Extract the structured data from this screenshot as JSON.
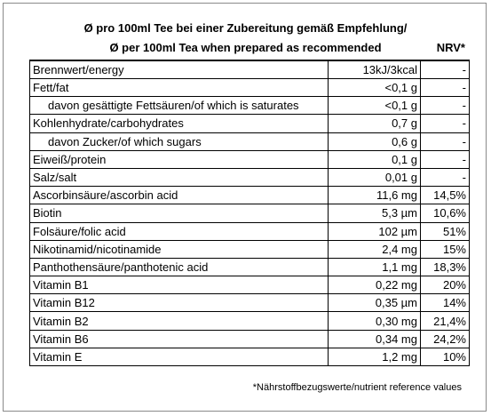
{
  "header": {
    "line1": "Ø pro 100ml Tee bei einer Zubereitung gemäß Empfehlung/",
    "line2": "Ø per 100ml Tea when prepared as recommended",
    "nrv_label": "NRV*"
  },
  "rows": [
    {
      "name": "Brennwert/energy",
      "amount": "13kJ/3kcal",
      "nrv": "-",
      "indent": false
    },
    {
      "name": "Fett/fat",
      "amount": "<0,1 g",
      "nrv": "-",
      "indent": false
    },
    {
      "name": "davon gesättigte Fettsäuren/of which is saturates",
      "amount": "<0,1 g",
      "nrv": "-",
      "indent": true
    },
    {
      "name": "Kohlenhydrate/carbohydrates",
      "amount": "0,7 g",
      "nrv": "-",
      "indent": false
    },
    {
      "name": "davon Zucker/of which sugars",
      "amount": "0,6 g",
      "nrv": "-",
      "indent": true
    },
    {
      "name": "Eiweiß/protein",
      "amount": "0,1 g",
      "nrv": "-",
      "indent": false
    },
    {
      "name": "Salz/salt",
      "amount": "0,01 g",
      "nrv": "-",
      "indent": false
    },
    {
      "name": "Ascorbinsäure/ascorbin acid",
      "amount": "11,6 mg",
      "nrv": "14,5%",
      "indent": false
    },
    {
      "name": "Biotin",
      "amount": "5,3 µm",
      "nrv": "10,6%",
      "indent": false
    },
    {
      "name": "Folsäure/folic acid",
      "amount": "102 µm",
      "nrv": "51%",
      "indent": false
    },
    {
      "name": "Nikotinamid/nicotinamide",
      "amount": "2,4 mg",
      "nrv": "15%",
      "indent": false
    },
    {
      "name": "Panthothensäure/panthotenic acid",
      "amount": "1,1 mg",
      "nrv": "18,3%",
      "indent": false
    },
    {
      "name": "Vitamin B1",
      "amount": "0,22 mg",
      "nrv": "20%",
      "indent": false
    },
    {
      "name": "Vitamin B12",
      "amount": "0,35 µm",
      "nrv": "14%",
      "indent": false
    },
    {
      "name": "Vitamin B2",
      "amount": "0,30 mg",
      "nrv": "21,4%",
      "indent": false
    },
    {
      "name": "Vitamin B6",
      "amount": "0,34 mg",
      "nrv": "24,2%",
      "indent": false
    },
    {
      "name": "Vitamin E",
      "amount": "1,2 mg",
      "nrv": "10%",
      "indent": false
    }
  ],
  "footnote": "*Nährstoffbezugswerte/nutrient reference values"
}
